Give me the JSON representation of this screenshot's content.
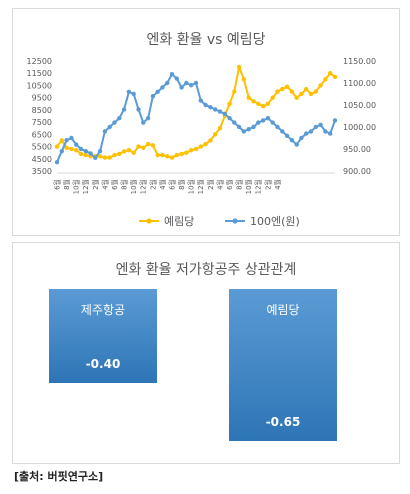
{
  "chart_data": [
    {
      "type": "line",
      "title": "엔화 환율 vs 예림당",
      "x": [
        "6",
        "7",
        "8",
        "9",
        "10",
        "11",
        "12",
        "1",
        "2",
        "3",
        "4",
        "5",
        "6",
        "7",
        "8",
        "9",
        "10",
        "11",
        "12",
        "1",
        "2",
        "3",
        "4",
        "5",
        "6",
        "7",
        "8",
        "9",
        "10",
        "11",
        "12",
        "1",
        "2",
        "3",
        "4",
        "5",
        "6",
        "7",
        "8",
        "9",
        "10",
        "11",
        "12",
        "1",
        "2",
        "3",
        "4",
        "5",
        "6",
        "7",
        "8",
        "9",
        "10",
        "11",
        "12",
        "1",
        "2",
        "3",
        "4"
      ],
      "x_tick_labels": [
        "6월",
        "8월",
        "10월",
        "12월",
        "2월",
        "4월",
        "6월",
        "8월",
        "10월",
        "12월",
        "2월",
        "4월",
        "6월",
        "8월",
        "10월",
        "12월",
        "2월",
        "4월",
        "6월",
        "8월",
        "10월",
        "12월",
        "2월",
        "4월"
      ],
      "series": [
        {
          "name": "예림당",
          "axis": "left",
          "color": "#ffc000",
          "values": [
            5500,
            6000,
            5400,
            5300,
            5200,
            4900,
            4800,
            4700,
            4700,
            4700,
            4600,
            4600,
            4800,
            4900,
            5100,
            5200,
            5000,
            5500,
            5400,
            5700,
            5600,
            4800,
            4800,
            4700,
            4600,
            4800,
            4900,
            5000,
            5200,
            5300,
            5500,
            5700,
            6000,
            6500,
            7000,
            8000,
            9000,
            10000,
            12000,
            11000,
            9500,
            9200,
            9000,
            8800,
            9000,
            9500,
            10000,
            10200,
            10400,
            10000,
            9500,
            9800,
            10200,
            9800,
            10000,
            10500,
            11000,
            11500,
            11200
          ]
        },
        {
          "name": "100엔(원)",
          "axis": "right",
          "color": "#5b9bd5",
          "values": [
            920,
            945,
            970,
            975,
            960,
            950,
            945,
            940,
            930,
            945,
            990,
            1000,
            1010,
            1020,
            1040,
            1080,
            1075,
            1040,
            1010,
            1020,
            1070,
            1080,
            1090,
            1100,
            1120,
            1110,
            1090,
            1100,
            1095,
            1100,
            1060,
            1050,
            1045,
            1040,
            1035,
            1030,
            1020,
            1010,
            1000,
            990,
            995,
            1000,
            1010,
            1015,
            1020,
            1010,
            1000,
            990,
            980,
            970,
            960,
            975,
            985,
            990,
            1000,
            1005,
            990,
            985,
            1015
          ]
        }
      ],
      "ylim_left": [
        3500,
        12500
      ],
      "yticks_left": [
        "12500",
        "11500",
        "10500",
        "9500",
        "8500",
        "7500",
        "6500",
        "5500",
        "4500",
        "3500"
      ],
      "ylim_right": [
        900,
        1150
      ],
      "yticks_right": [
        "1150.00",
        "1100.00",
        "1050.00",
        "1000.00",
        "950.00",
        "900.00"
      ],
      "legend": "bottom",
      "grid": false
    },
    {
      "type": "bar",
      "title": "엔화 환율 저가항공주 상관관계",
      "categories": [
        "제주항공",
        "예림당"
      ],
      "values": [
        -0.4,
        -0.65
      ],
      "value_labels": [
        "-0.40",
        "-0.65"
      ],
      "ylim": [
        -0.7,
        0
      ],
      "color": "#5b9bd5"
    }
  ],
  "source": "[출처: 버핏연구소]"
}
